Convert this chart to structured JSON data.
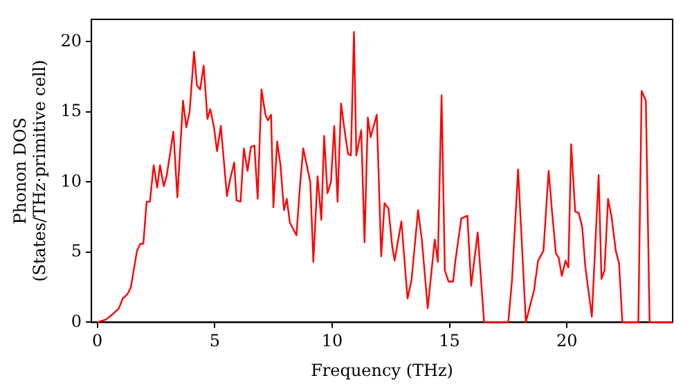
{
  "chart_data": {
    "type": "line",
    "xlabel": "Frequency (THz)",
    "ylabel": "Phonon DOS\n(States/THz·primitive cell)",
    "x": [
      0,
      0.37,
      0.67,
      0.92,
      1.08,
      1.28,
      1.43,
      1.69,
      1.83,
      1.96,
      2.1,
      2.24,
      2.4,
      2.55,
      2.67,
      2.83,
      2.95,
      3.24,
      3.41,
      3.65,
      3.79,
      3.93,
      4.12,
      4.24,
      4.38,
      4.53,
      4.69,
      4.81,
      4.97,
      5.1,
      5.26,
      5.52,
      5.67,
      5.83,
      5.93,
      6.1,
      6.24,
      6.4,
      6.54,
      6.69,
      6.83,
      6.99,
      7.16,
      7.26,
      7.4,
      7.5,
      7.66,
      7.8,
      7.95,
      8.07,
      8.2,
      8.48,
      8.62,
      8.77,
      9.07,
      9.2,
      9.38,
      9.54,
      9.66,
      9.8,
      9.95,
      10.09,
      10.23,
      10.38,
      10.52,
      10.68,
      10.8,
      10.93,
      11.03,
      11.24,
      11.38,
      11.52,
      11.64,
      11.9,
      12.09,
      12.23,
      12.4,
      12.56,
      12.66,
      12.95,
      13.21,
      13.38,
      13.66,
      13.82,
      14.07,
      14.37,
      14.5,
      14.66,
      14.8,
      14.96,
      15.15,
      15.25,
      15.5,
      15.76,
      15.92,
      16.2,
      16.47,
      17.5,
      17.66,
      17.92,
      18.25,
      18.4,
      18.6,
      18.77,
      19.0,
      19.22,
      19.37,
      19.53,
      19.65,
      19.78,
      19.94,
      20.06,
      20.18,
      20.35,
      20.5,
      20.65,
      20.78,
      21.06,
      21.35,
      21.47,
      21.6,
      21.75,
      21.9,
      22.08,
      22.22,
      22.36,
      23.04,
      23.18,
      23.36,
      23.52,
      24.5
    ],
    "series": [
      {
        "color": "#ff0000",
        "values": [
          0,
          0.2,
          0.6,
          1.0,
          1.7,
          2.0,
          2.5,
          5.1,
          5.6,
          5.6,
          8.6,
          8.6,
          11.2,
          9.6,
          11.2,
          9.7,
          10.4,
          13.6,
          8.9,
          15.8,
          13.9,
          15.0,
          19.3,
          16.9,
          16.6,
          18.3,
          14.5,
          15.2,
          13.9,
          12.2,
          14.0,
          9.0,
          10.3,
          11.4,
          8.7,
          8.6,
          12.4,
          10.8,
          12.5,
          12.6,
          8.8,
          16.6,
          14.8,
          14.4,
          14.8,
          8.2,
          12.9,
          11.2,
          8.0,
          8.8,
          7.1,
          6.2,
          9.5,
          12.4,
          10.0,
          4.3,
          10.4,
          7.3,
          13.3,
          9.2,
          10.0,
          14.0,
          8.6,
          15.6,
          13.8,
          12.0,
          11.9,
          20.7,
          11.9,
          13.7,
          5.7,
          14.6,
          13.2,
          14.8,
          4.7,
          8.5,
          8.1,
          5.4,
          4.4,
          7.2,
          1.7,
          3.0,
          8.0,
          5.9,
          1.0,
          5.9,
          4.3,
          16.2,
          3.7,
          2.9,
          2.9,
          4.4,
          7.4,
          7.6,
          2.6,
          6.4,
          0,
          0,
          3.0,
          10.9,
          0,
          1.0,
          2.3,
          4.4,
          5.1,
          10.8,
          7.8,
          4.9,
          4.6,
          3.3,
          4.4,
          3.9,
          12.7,
          7.9,
          7.8,
          6.8,
          4.0,
          0.4,
          10.5,
          3.1,
          3.7,
          8.8,
          7.5,
          5.1,
          4.2,
          0,
          0,
          16.5,
          15.8,
          0,
          0
        ]
      }
    ],
    "xlim": [
      -0.25,
      24.5
    ],
    "ylim": [
      0,
      21.6
    ],
    "xticks": [
      0,
      5,
      10,
      15,
      20
    ],
    "yticks": [
      0,
      5,
      10,
      15,
      20
    ],
    "grid": false,
    "legend": false,
    "marker": "none",
    "line_style": "solid"
  }
}
